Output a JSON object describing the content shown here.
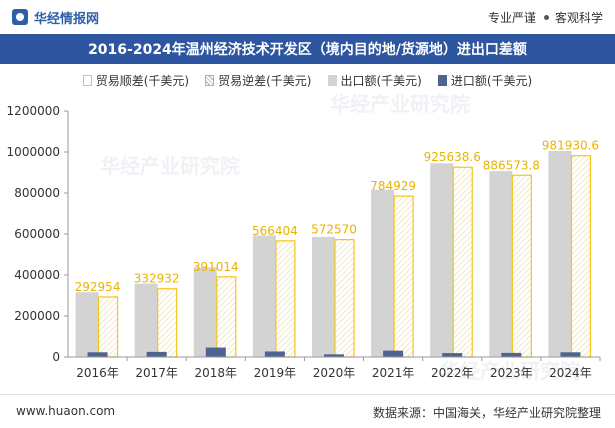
{
  "header": {
    "logo_text": "华经情报网",
    "tag1": "专业严谨",
    "tag2": "客观科学"
  },
  "title": "2016-2024年温州经济技术开发区（境内目的地/货源地）进出口差额",
  "legend": {
    "shun": "贸易顺差(千美元)",
    "ni": "贸易逆差(千美元)",
    "exp": "出口额(千美元)",
    "imp": "进口额(千美元)"
  },
  "footer": {
    "site": "www.huaon.com",
    "source": "数据来源：中国海关，华经产业研究院整理"
  },
  "watermark": "华经产业研究院",
  "colors": {
    "surplus": "#f5c518",
    "export": "#d3d3d3",
    "import": "#4d6490",
    "title_bg": "#2d55a0"
  },
  "chart_data": {
    "type": "bar",
    "categories": [
      "2016年",
      "2017年",
      "2018年",
      "2019年",
      "2020年",
      "2021年",
      "2022年",
      "2023年",
      "2024年"
    ],
    "series": [
      {
        "name": "出口额(千美元)",
        "values": [
          316000,
          358000,
          437000,
          593000,
          586000,
          816000,
          945000,
          907000,
          1005000
        ]
      },
      {
        "name": "进口额(千美元)",
        "values": [
          23000,
          25000,
          46000,
          27000,
          13000,
          31000,
          19000,
          20000,
          23000
        ]
      },
      {
        "name": "贸易顺差(千美元)",
        "values": [
          292954,
          332932,
          391014,
          566404,
          572570,
          784929,
          925638.6,
          886573.8,
          981930.6
        ]
      },
      {
        "name": "贸易逆差(千美元)",
        "values": [
          0,
          0,
          0,
          0,
          0,
          0,
          0,
          0,
          0
        ]
      }
    ],
    "data_labels": [
      "292954",
      "332932",
      "391014",
      "566404",
      "572570",
      "784929",
      "925638.6",
      "886573.8",
      "981930.6"
    ],
    "y_ticks": [
      "0",
      "200000",
      "400000",
      "600000",
      "800000",
      "1000000",
      "1200000"
    ],
    "ylim": [
      0,
      1200000
    ],
    "grid": false,
    "legend_position": "top"
  }
}
